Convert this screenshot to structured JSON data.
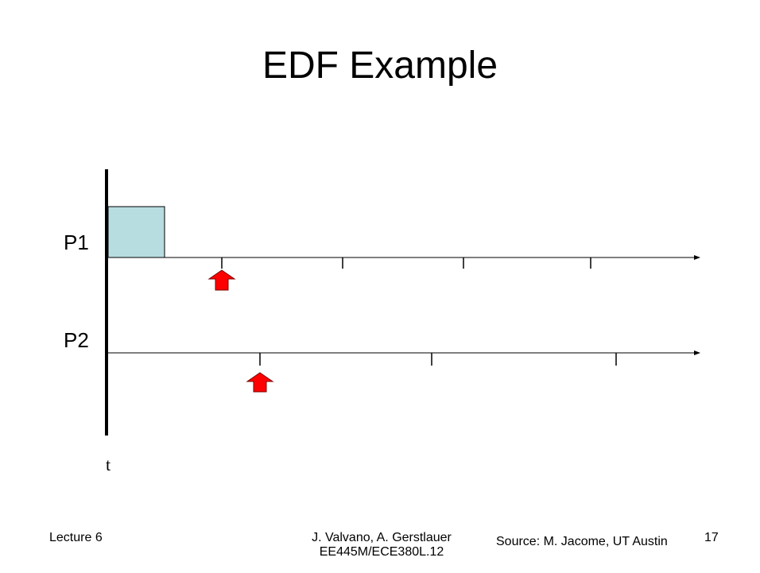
{
  "slide": {
    "title": "EDF Example",
    "footer": {
      "left": "Lecture 6",
      "center_line1": "J. Valvano, A. Gerstlauer",
      "center_line2": "EE445M/ECE380L.12",
      "source": "Source: M. Jacome, UT Austin",
      "page_number": "17"
    }
  },
  "diagram": {
    "time_axis_label": "t",
    "tasks": [
      {
        "label": "P1",
        "period_ticks": 4,
        "execution_block_color": "#b7dde0"
      },
      {
        "label": "P2",
        "period_ticks": 3
      }
    ],
    "arrival_marker_color": "#ff0000"
  }
}
